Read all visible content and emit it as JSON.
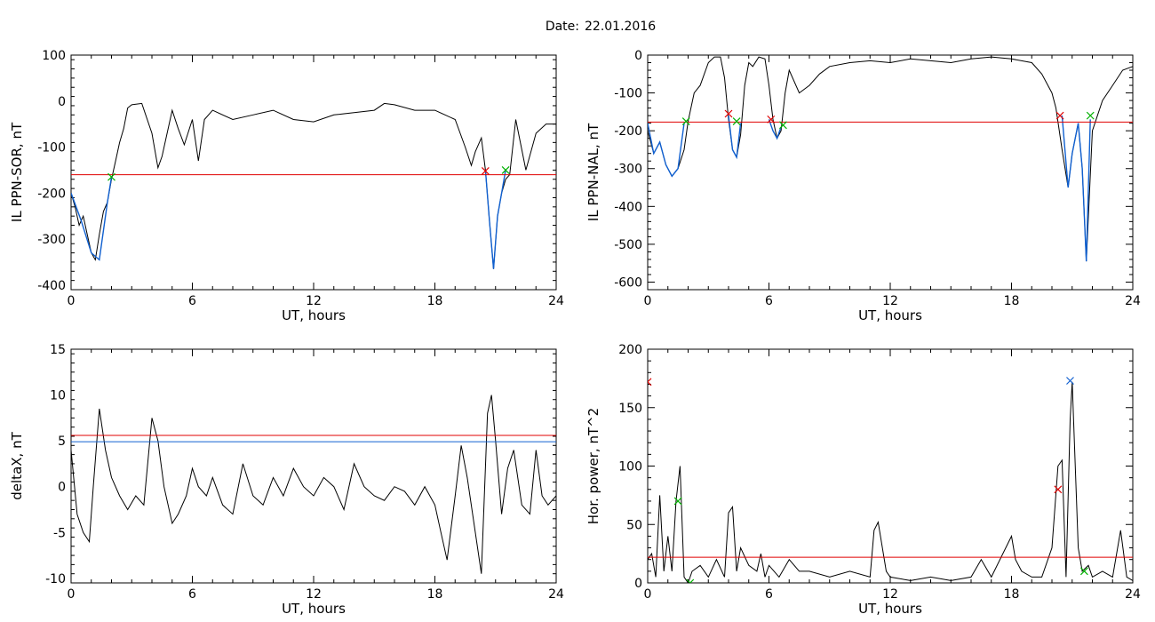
{
  "header": {
    "date_label": "Date:",
    "date_value": "22.01.2016"
  },
  "colors": {
    "curve": "#000000",
    "threshold": "#e00000",
    "highlight": "#1060d0",
    "marker_red": "#e00000",
    "marker_green": "#00b000",
    "marker_blue": "#1060d0",
    "frame": "#000000"
  },
  "chart_data": [
    {
      "type": "line",
      "ylabel": "IL PPN-SOR, nT",
      "xlabel": "UT, hours",
      "xlim": [
        0,
        24
      ],
      "ylim": [
        -410,
        100
      ],
      "xticks": [
        0,
        6,
        12,
        18,
        24
      ],
      "yticks": [
        100,
        0,
        -100,
        -200,
        -300,
        -400
      ],
      "series": [
        {
          "color": "#000000",
          "x": [
            0,
            0.2,
            0.4,
            0.6,
            0.8,
            1.0,
            1.2,
            1.4,
            1.6,
            1.8,
            2.0,
            2.2,
            2.4,
            2.6,
            2.8,
            3.0,
            3.5,
            4.0,
            4.3,
            4.5,
            5.0,
            5.3,
            5.6,
            6.0,
            6.3,
            6.6,
            7.0,
            8,
            9,
            10,
            11,
            12,
            13,
            14,
            15,
            15.5,
            16,
            17,
            18,
            19,
            19.5,
            19.8,
            20.0,
            20.3,
            20.5,
            20.7,
            20.9,
            21.1,
            21.3,
            21.5,
            21.7,
            22.0,
            22.5,
            23,
            23.5,
            24
          ],
          "y": [
            -200,
            -230,
            -270,
            -250,
            -290,
            -330,
            -345,
            -290,
            -240,
            -220,
            -170,
            -130,
            -90,
            -60,
            -15,
            -8,
            -5,
            -70,
            -145,
            -120,
            -20,
            -60,
            -95,
            -40,
            -130,
            -40,
            -20,
            -40,
            -30,
            -20,
            -40,
            -45,
            -30,
            -25,
            -20,
            -5,
            -8,
            -20,
            -20,
            -40,
            -100,
            -140,
            -110,
            -80,
            -150,
            -260,
            -365,
            -250,
            -200,
            -170,
            -160,
            -40,
            -150,
            -70,
            -50,
            -50
          ]
        },
        {
          "color": "#1060d0",
          "x": [
            0,
            0.5,
            1.0,
            1.4,
            1.8,
            2.0
          ],
          "y": [
            -200,
            -260,
            -330,
            -345,
            -220,
            -165
          ]
        },
        {
          "color": "#1060d0",
          "x": [
            20.5,
            20.7,
            20.9,
            21.1,
            21.3,
            21.5
          ],
          "y": [
            -150,
            -260,
            -365,
            -250,
            -200,
            -150
          ]
        }
      ],
      "thresholds": [
        {
          "y": -160,
          "color": "#e00000"
        }
      ],
      "markers": [
        {
          "x": 2.0,
          "y": -165,
          "color": "#00b000"
        },
        {
          "x": 20.5,
          "y": -152,
          "color": "#e00000"
        },
        {
          "x": 21.5,
          "y": -150,
          "color": "#00b000"
        }
      ]
    },
    {
      "type": "line",
      "ylabel": "IL PPN-NAL, nT",
      "xlabel": "UT, hours",
      "xlim": [
        0,
        24
      ],
      "ylim": [
        -620,
        0
      ],
      "xticks": [
        0,
        6,
        12,
        18,
        24
      ],
      "yticks": [
        0,
        -100,
        -200,
        -300,
        -400,
        -500,
        -600
      ],
      "series": [
        {
          "color": "#000000",
          "x": [
            0,
            0.3,
            0.6,
            0.9,
            1.2,
            1.5,
            1.8,
            2.0,
            2.3,
            2.6,
            3.0,
            3.3,
            3.6,
            3.8,
            4.0,
            4.2,
            4.4,
            4.6,
            4.8,
            5.0,
            5.2,
            5.5,
            5.8,
            6.0,
            6.2,
            6.4,
            6.6,
            6.8,
            7.0,
            7.5,
            8,
            8.5,
            9,
            10,
            11,
            12,
            13,
            14,
            15,
            16,
            17,
            18,
            19,
            19.5,
            20.0,
            20.2,
            20.5,
            20.8,
            21.0,
            21.3,
            21.5,
            21.7,
            22.0,
            22.5,
            23,
            23.5,
            24
          ],
          "y": [
            -200,
            -260,
            -230,
            -290,
            -320,
            -300,
            -250,
            -175,
            -100,
            -80,
            -20,
            -5,
            -5,
            -60,
            -170,
            -250,
            -270,
            -210,
            -80,
            -20,
            -30,
            -5,
            -10,
            -80,
            -170,
            -220,
            -200,
            -100,
            -40,
            -100,
            -80,
            -50,
            -30,
            -20,
            -15,
            -20,
            -10,
            -15,
            -20,
            -10,
            -5,
            -10,
            -20,
            -50,
            -100,
            -140,
            -250,
            -350,
            -260,
            -180,
            -300,
            -545,
            -200,
            -120,
            -80,
            -40,
            -30
          ]
        },
        {
          "color": "#1060d0",
          "x": [
            0,
            0.3,
            0.6,
            0.9,
            1.2,
            1.5,
            1.8
          ],
          "y": [
            -180,
            -260,
            -230,
            -290,
            -320,
            -300,
            -180
          ]
        },
        {
          "color": "#1060d0",
          "x": [
            4.0,
            4.2,
            4.4,
            4.6
          ],
          "y": [
            -160,
            -250,
            -270,
            -180
          ]
        },
        {
          "color": "#1060d0",
          "x": [
            6.0,
            6.2,
            6.4,
            6.6
          ],
          "y": [
            -170,
            -200,
            -220,
            -190
          ]
        },
        {
          "color": "#1060d0",
          "x": [
            20.5,
            20.8,
            21.0,
            21.3,
            21.5,
            21.7,
            21.9
          ],
          "y": [
            -160,
            -350,
            -260,
            -180,
            -300,
            -545,
            -170
          ]
        }
      ],
      "thresholds": [
        {
          "y": -177,
          "color": "#e00000"
        }
      ],
      "markers": [
        {
          "x": 1.9,
          "y": -175,
          "color": "#00b000"
        },
        {
          "x": 4.0,
          "y": -155,
          "color": "#e00000"
        },
        {
          "x": 4.4,
          "y": -175,
          "color": "#00b000"
        },
        {
          "x": 6.1,
          "y": -170,
          "color": "#e00000"
        },
        {
          "x": 6.7,
          "y": -185,
          "color": "#00b000"
        },
        {
          "x": 20.4,
          "y": -160,
          "color": "#e00000"
        },
        {
          "x": 21.9,
          "y": -160,
          "color": "#00b000"
        }
      ]
    },
    {
      "type": "line",
      "ylabel": "deltaX, nT",
      "xlabel": "UT, hours",
      "xlim": [
        0,
        24
      ],
      "ylim": [
        -10.5,
        15
      ],
      "xticks": [
        0,
        6,
        12,
        18,
        24
      ],
      "yticks": [
        15,
        10,
        5,
        0,
        -5,
        -10
      ],
      "series": [
        {
          "color": "#000000",
          "x": [
            0,
            0.3,
            0.6,
            0.9,
            1.1,
            1.4,
            1.7,
            2.0,
            2.4,
            2.8,
            3.2,
            3.6,
            4.0,
            4.3,
            4.6,
            5.0,
            5.3,
            5.7,
            6.0,
            6.3,
            6.7,
            7.0,
            7.5,
            8.0,
            8.5,
            9.0,
            9.5,
            10.0,
            10.5,
            11.0,
            11.5,
            12.0,
            12.5,
            13.0,
            13.5,
            14.0,
            14.5,
            15.0,
            15.5,
            16.0,
            16.5,
            17.0,
            17.5,
            18.0,
            18.3,
            18.6,
            19.0,
            19.3,
            19.6,
            20.0,
            20.3,
            20.6,
            20.8,
            21.0,
            21.3,
            21.6,
            21.9,
            22.3,
            22.7,
            23.0,
            23.3,
            23.6,
            24.0
          ],
          "y": [
            4,
            -3,
            -5,
            -6,
            0,
            8.5,
            4,
            1,
            -1,
            -2.5,
            -1,
            -2,
            7.5,
            5,
            0,
            -4,
            -3,
            -1,
            2,
            0,
            -1,
            1,
            -2,
            -3,
            2.5,
            -1,
            -2,
            1,
            -1,
            2,
            0,
            -1,
            1,
            0,
            -2.5,
            2.5,
            0,
            -1,
            -1.5,
            0,
            -0.5,
            -2,
            0,
            -2,
            -5,
            -8,
            -1,
            4.5,
            1,
            -5,
            -9.5,
            8,
            10,
            5,
            -3,
            2,
            4,
            -2,
            -3,
            4,
            -1,
            -2,
            -1
          ]
        }
      ],
      "thresholds": [
        {
          "y": 5.6,
          "color": "#e00000"
        },
        {
          "y": 4.9,
          "color": "#1060d0"
        }
      ],
      "markers": []
    },
    {
      "type": "line",
      "ylabel": "Hor. power, nT^2",
      "xlabel": "UT, hours",
      "xlim": [
        0,
        24
      ],
      "ylim": [
        0,
        200
      ],
      "xticks": [
        0,
        6,
        12,
        18,
        24
      ],
      "yticks": [
        200,
        150,
        100,
        50,
        0
      ],
      "series": [
        {
          "color": "#000000",
          "x": [
            0,
            0.2,
            0.4,
            0.6,
            0.8,
            1.0,
            1.2,
            1.4,
            1.6,
            1.8,
            2.0,
            2.2,
            2.6,
            3.0,
            3.4,
            3.8,
            4.0,
            4.2,
            4.4,
            4.6,
            5.0,
            5.4,
            5.6,
            5.8,
            6.0,
            6.5,
            7.0,
            7.5,
            8,
            9,
            10,
            11.0,
            11.2,
            11.4,
            11.8,
            12,
            13,
            14,
            15,
            16,
            16.5,
            17,
            18.0,
            18.2,
            18.5,
            19,
            19.5,
            20.0,
            20.3,
            20.5,
            20.7,
            20.9,
            21.0,
            21.3,
            21.5,
            21.8,
            22,
            22.5,
            23.0,
            23.4,
            23.7,
            24
          ],
          "y": [
            20,
            25,
            5,
            75,
            10,
            40,
            10,
            70,
            100,
            5,
            0,
            10,
            15,
            5,
            20,
            5,
            60,
            65,
            10,
            30,
            15,
            10,
            25,
            5,
            15,
            5,
            20,
            10,
            10,
            5,
            10,
            5,
            45,
            52,
            10,
            5,
            2,
            5,
            2,
            5,
            20,
            5,
            40,
            20,
            10,
            5,
            5,
            30,
            100,
            105,
            5,
            140,
            172,
            30,
            10,
            15,
            5,
            10,
            5,
            45,
            5,
            2
          ]
        }
      ],
      "thresholds": [
        {
          "y": 22,
          "color": "#e00000"
        }
      ],
      "markers": [
        {
          "x": 0.0,
          "y": 172,
          "color": "#e00000"
        },
        {
          "x": 1.5,
          "y": 70,
          "color": "#00b000"
        },
        {
          "x": 2.1,
          "y": 0,
          "color": "#00b000"
        },
        {
          "x": 20.3,
          "y": 80,
          "color": "#e00000"
        },
        {
          "x": 20.9,
          "y": 173,
          "color": "#1060d0"
        },
        {
          "x": 21.6,
          "y": 10,
          "color": "#00b000"
        }
      ]
    }
  ]
}
